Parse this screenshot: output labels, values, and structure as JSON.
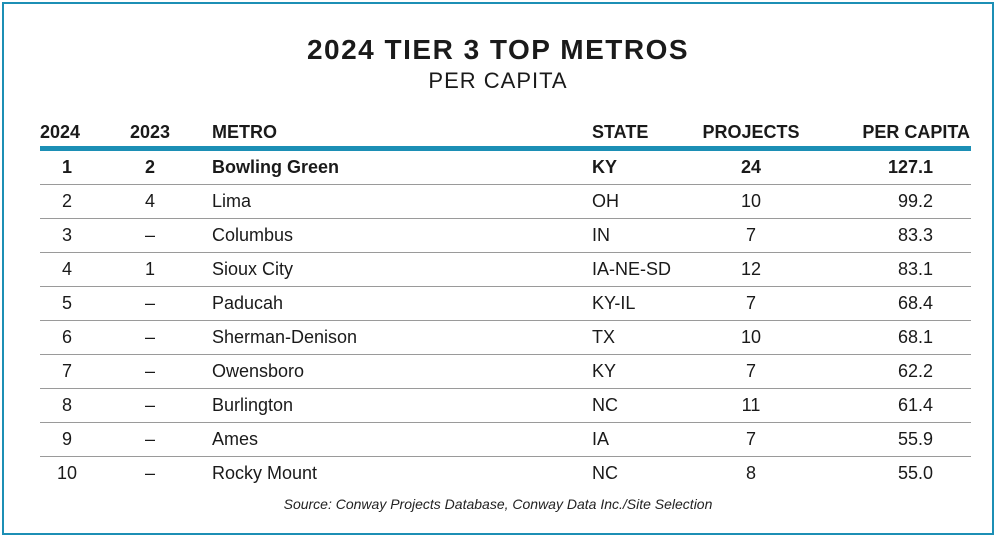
{
  "title": "2024 TIER 3 TOP METROS",
  "subtitle": "PER CAPITA",
  "source": "Source: Conway Projects Database, Conway Data Inc./Site Selection",
  "colors": {
    "accent": "#1c8fb5",
    "rule": "#9a9a9a"
  },
  "chart_data": {
    "type": "table",
    "title": "2024 TIER 3 TOP METROS",
    "subtitle": "PER CAPITA",
    "columns": [
      "2024",
      "2023",
      "METRO",
      "STATE",
      "PROJECTS",
      "PER CAPITA"
    ],
    "rows": [
      [
        "1",
        "2",
        "Bowling Green",
        "KY",
        "24",
        "127.1"
      ],
      [
        "2",
        "4",
        "Lima",
        "OH",
        "10",
        "99.2"
      ],
      [
        "3",
        "–",
        "Columbus",
        "IN",
        "7",
        "83.3"
      ],
      [
        "4",
        "1",
        "Sioux City",
        "IA-NE-SD",
        "12",
        "83.1"
      ],
      [
        "5",
        "–",
        "Paducah",
        "KY-IL",
        "7",
        "68.4"
      ],
      [
        "6",
        "–",
        "Sherman-Denison",
        "TX",
        "10",
        "68.1"
      ],
      [
        "7",
        "–",
        "Owensboro",
        "KY",
        "7",
        "62.2"
      ],
      [
        "8",
        "–",
        "Burlington",
        "NC",
        "11",
        "61.4"
      ],
      [
        "9",
        "–",
        "Ames",
        "IA",
        "7",
        "55.9"
      ],
      [
        "10",
        "–",
        "Rocky Mount",
        "NC",
        "8",
        "55.0"
      ]
    ]
  }
}
